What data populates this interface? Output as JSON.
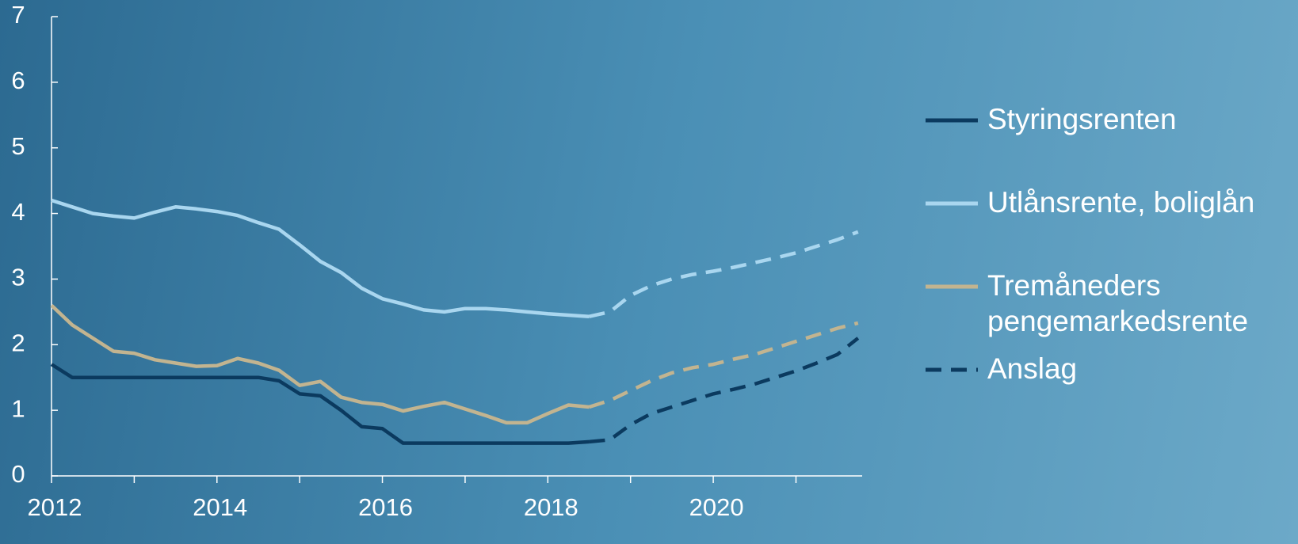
{
  "chart_data": {
    "type": "line",
    "x": [
      2012,
      2012.25,
      2012.5,
      2012.75,
      2013,
      2013.25,
      2013.5,
      2013.75,
      2014,
      2014.25,
      2014.5,
      2014.75,
      2015,
      2015.25,
      2015.5,
      2015.75,
      2016,
      2016.25,
      2016.5,
      2016.75,
      2017,
      2017.25,
      2017.5,
      2017.75,
      2018,
      2018.25,
      2018.5,
      2018.75,
      2019,
      2019.25,
      2019.5,
      2019.75,
      2020,
      2020.25,
      2020.5,
      2020.75,
      2021,
      2021.25,
      2021.5,
      2021.75
    ],
    "series": [
      {
        "name": "Styringsrenten",
        "color": "#0b3a5f",
        "values": [
          1.7,
          1.5,
          1.5,
          1.5,
          1.5,
          1.5,
          1.5,
          1.5,
          1.5,
          1.5,
          1.5,
          1.45,
          1.25,
          1.22,
          1.0,
          0.75,
          0.72,
          0.5,
          0.5,
          0.5,
          0.5,
          0.5,
          0.5,
          0.5,
          0.5,
          0.5,
          0.52,
          null,
          null,
          null,
          null,
          null,
          null,
          null,
          null,
          null,
          null,
          null,
          null,
          null
        ],
        "forecast": [
          null,
          null,
          null,
          null,
          null,
          null,
          null,
          null,
          null,
          null,
          null,
          null,
          null,
          null,
          null,
          null,
          null,
          null,
          null,
          null,
          null,
          null,
          null,
          null,
          null,
          null,
          0.52,
          0.55,
          0.78,
          0.95,
          1.05,
          1.15,
          1.25,
          1.32,
          1.4,
          1.5,
          1.6,
          1.72,
          1.85,
          2.1
        ]
      },
      {
        "name": "Utlånsrente, boliglån",
        "color": "#a9d6ef",
        "values": [
          4.2,
          4.1,
          4.0,
          3.96,
          3.93,
          4.02,
          4.1,
          4.07,
          4.03,
          3.97,
          3.86,
          3.76,
          3.52,
          3.27,
          3.1,
          2.86,
          2.7,
          2.62,
          2.53,
          2.5,
          2.55,
          2.55,
          2.53,
          2.5,
          2.47,
          2.45,
          2.43,
          null,
          null,
          null,
          null,
          null,
          null,
          null,
          null,
          null,
          null,
          null,
          null,
          null
        ],
        "forecast": [
          null,
          null,
          null,
          null,
          null,
          null,
          null,
          null,
          null,
          null,
          null,
          null,
          null,
          null,
          null,
          null,
          null,
          null,
          null,
          null,
          null,
          null,
          null,
          null,
          null,
          null,
          2.43,
          2.5,
          2.75,
          2.9,
          3.0,
          3.07,
          3.12,
          3.18,
          3.25,
          3.32,
          3.4,
          3.5,
          3.6,
          3.72
        ]
      },
      {
        "name": "Tremåneders pengemarkedsrente",
        "color": "#c2b490",
        "values": [
          2.6,
          2.3,
          2.1,
          1.9,
          1.87,
          1.77,
          1.72,
          1.67,
          1.68,
          1.79,
          1.72,
          1.61,
          1.38,
          1.44,
          1.2,
          1.12,
          1.09,
          0.99,
          1.06,
          1.12,
          1.02,
          0.92,
          0.81,
          0.81,
          0.95,
          1.08,
          1.05,
          null,
          null,
          null,
          null,
          null,
          null,
          null,
          null,
          null,
          null,
          null,
          null,
          null
        ],
        "forecast": [
          null,
          null,
          null,
          null,
          null,
          null,
          null,
          null,
          null,
          null,
          null,
          null,
          null,
          null,
          null,
          null,
          null,
          null,
          null,
          null,
          null,
          null,
          null,
          null,
          null,
          null,
          1.05,
          1.15,
          1.3,
          1.45,
          1.57,
          1.65,
          1.7,
          1.78,
          1.85,
          1.95,
          2.05,
          2.15,
          2.25,
          2.33
        ]
      }
    ],
    "forecast_label": "Anslag",
    "forecast_color": "#0b3a5f",
    "xlim": [
      2012,
      2021.8
    ],
    "xticks": [
      2012,
      2014,
      2016,
      2018,
      2020
    ],
    "xminorticks": [
      2013,
      2015,
      2017,
      2019,
      2021
    ],
    "ylim": [
      0,
      7
    ],
    "yticks": [
      0,
      1,
      2,
      3,
      4,
      5,
      6,
      7
    ]
  }
}
